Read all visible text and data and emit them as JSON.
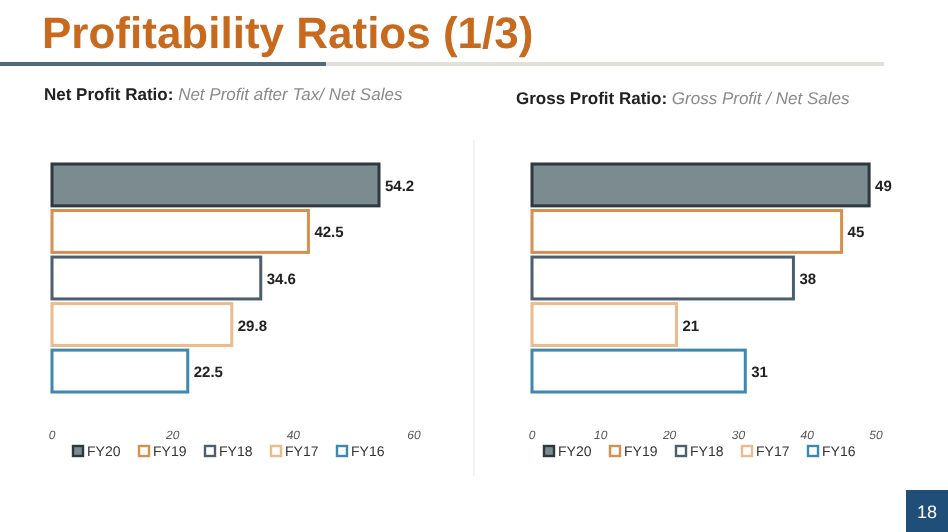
{
  "chart_data": [
    {
      "type": "bar",
      "orientation": "horizontal",
      "title": "Profitability Ratios (1/3)",
      "subtitle": "Net Profit Ratio: Net Profit after Tax/ Net Sales",
      "categories": [
        null
      ],
      "series": [
        {
          "name": "FY20",
          "color": "#7b8b90",
          "values": [
            54.2
          ]
        },
        {
          "name": "FY19",
          "color": "#d4904f",
          "values": [
            42.5
          ]
        },
        {
          "name": "FY18",
          "color": "#4b5f6e",
          "values": [
            34.6
          ]
        },
        {
          "name": "FY17",
          "color": "#ecbb8c",
          "values": [
            29.8
          ]
        },
        {
          "name": "FY16",
          "color": "#3d88b0",
          "values": [
            22.5
          ]
        }
      ],
      "xlim": [
        0,
        60
      ],
      "xticks": [
        0,
        20,
        40,
        60
      ],
      "data_labels": true,
      "legend": "bottom"
    },
    {
      "type": "bar",
      "orientation": "horizontal",
      "subtitle": "Gross Profit Ratio: Gross Profit / Net Sales",
      "categories": [
        null
      ],
      "series": [
        {
          "name": "FY20",
          "color": "#7b8b90",
          "values": [
            49
          ]
        },
        {
          "name": "FY19",
          "color": "#d4904f",
          "values": [
            45
          ]
        },
        {
          "name": "FY18",
          "color": "#4b5f6e",
          "values": [
            38
          ]
        },
        {
          "name": "FY17",
          "color": "#ecbb8c",
          "values": [
            21
          ]
        },
        {
          "name": "FY16",
          "color": "#3d88b0",
          "values": [
            31
          ]
        }
      ],
      "xlim": [
        0,
        50
      ],
      "xticks": [
        0,
        10,
        20,
        30,
        40,
        50
      ],
      "data_labels": true,
      "legend": "bottom",
      "annotations": [
        "18"
      ]
    }
  ]
}
